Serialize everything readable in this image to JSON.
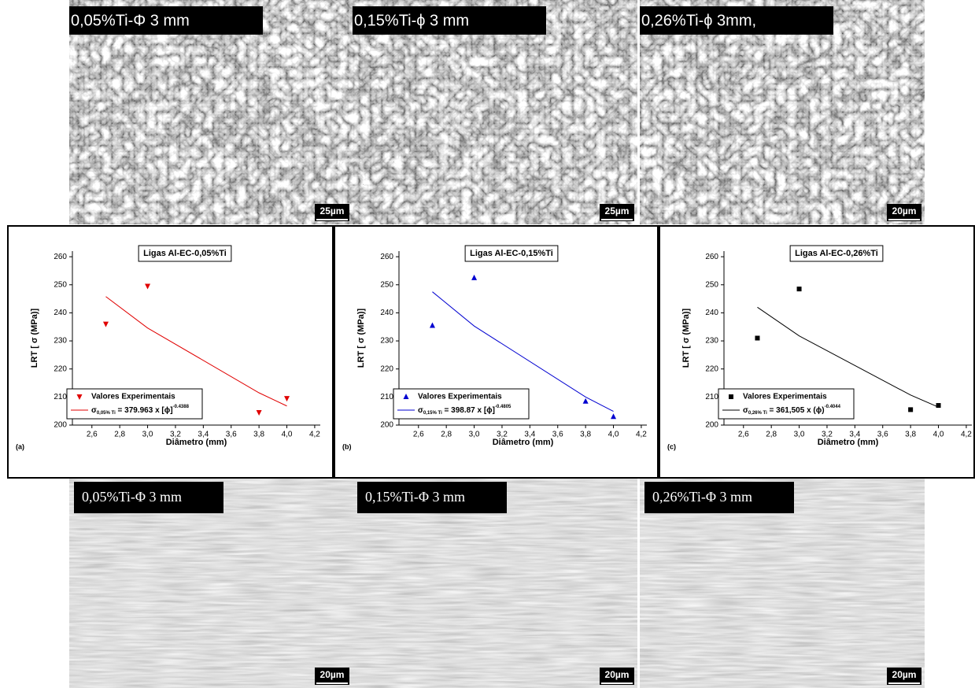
{
  "images_top": [
    {
      "label": "0,05%Ti-Φ 3 mm",
      "scale": "25µm"
    },
    {
      "label": "0,15%Ti-ϕ 3 mm",
      "scale": "25µm"
    },
    {
      "label": "0,26%Ti-ϕ 3mm,",
      "scale": "20µm"
    }
  ],
  "images_bottom": [
    {
      "label": "0,05%Ti-Φ 3 mm",
      "scale": "20µm"
    },
    {
      "label": "0,15%Ti-Φ 3 mm",
      "scale": "20µm"
    },
    {
      "label": "0,26%Ti-Φ 3 mm",
      "scale": "20µm"
    }
  ],
  "chart_data": [
    {
      "type": "scatter",
      "panel": "(a)",
      "title": "Ligas Al-EC-0,05%Ti",
      "x_label": "Diâmetro (mm)",
      "y_label": "LRT [ σ (MPa)]",
      "xlim": [
        2.46,
        4.24
      ],
      "ylim": [
        200,
        262
      ],
      "xticks": [
        {
          "value": 2.6,
          "label": "2,6"
        },
        {
          "value": 2.8,
          "label": "2,8"
        },
        {
          "value": 3.0,
          "label": "3,0"
        },
        {
          "value": 3.2,
          "label": "3,2"
        },
        {
          "value": 3.4,
          "label": "3,4"
        },
        {
          "value": 3.6,
          "label": "3,6"
        },
        {
          "value": 3.8,
          "label": "3,8"
        },
        {
          "value": 4.0,
          "label": "4,0"
        },
        {
          "value": 4.2,
          "label": "4,2"
        }
      ],
      "yticks": [
        200,
        210,
        220,
        230,
        240,
        250,
        260
      ],
      "series": [
        {
          "name": "Valores Experimentais",
          "color": "#e00000",
          "marker": "triangle-down",
          "x": [
            2.7,
            3.0,
            3.8,
            4.0
          ],
          "values": [
            236,
            249.5,
            204.5,
            209.5
          ]
        },
        {
          "type": "line",
          "name_parts": [
            "σ",
            "0,05% Ti",
            " = 379.963 x [ϕ]",
            "-0.4388"
          ],
          "color": "#e00000",
          "x": [
            2.7,
            3.0,
            3.8,
            4.0
          ],
          "values": [
            245.8,
            234.6,
            211.5,
            206.8
          ]
        }
      ]
    },
    {
      "type": "scatter",
      "panel": "(b)",
      "title": "Ligas Al-EC-0,15%Ti",
      "x_label": "Diâmetro (mm)",
      "y_label": "LRT [ σ (MPa)]",
      "xlim": [
        2.46,
        4.24
      ],
      "ylim": [
        200,
        262
      ],
      "xticks": [
        {
          "value": 2.6,
          "label": "2,6"
        },
        {
          "value": 2.8,
          "label": "2,8"
        },
        {
          "value": 3.0,
          "label": "3,0"
        },
        {
          "value": 3.2,
          "label": "3,2"
        },
        {
          "value": 3.4,
          "label": "3,4"
        },
        {
          "value": 3.6,
          "label": "3,6"
        },
        {
          "value": 3.8,
          "label": "3,8"
        },
        {
          "value": 4.0,
          "label": "4,0"
        },
        {
          "value": 4.2,
          "label": "4,2"
        }
      ],
      "yticks": [
        200,
        210,
        220,
        230,
        240,
        250,
        260
      ],
      "series": [
        {
          "name": "Valores Experimentais",
          "color": "#0000d0",
          "marker": "triangle-up",
          "x": [
            2.7,
            3.0,
            3.8,
            4.0
          ],
          "values": [
            235.5,
            252.5,
            208.5,
            203
          ]
        },
        {
          "type": "line",
          "name_parts": [
            "σ",
            "0,15% Ti",
            " = 398.87 x [ϕ]",
            "-0.4805"
          ],
          "color": "#0000d0",
          "x": [
            2.7,
            3.0,
            3.8,
            4.0
          ],
          "values": [
            247.5,
            235.3,
            210.0,
            204.9
          ]
        }
      ]
    },
    {
      "type": "scatter",
      "panel": "(c)",
      "title": "Ligas Al-EC-0,26%Ti",
      "x_label": "Diâmetro (mm)",
      "y_label": "LRT [ σ (MPa)]",
      "xlim": [
        2.46,
        4.24
      ],
      "ylim": [
        200,
        262
      ],
      "xticks": [
        {
          "value": 2.6,
          "label": "2,6"
        },
        {
          "value": 2.8,
          "label": "2,8"
        },
        {
          "value": 3.0,
          "label": "3,0"
        },
        {
          "value": 3.2,
          "label": "3,2"
        },
        {
          "value": 3.4,
          "label": "3,4"
        },
        {
          "value": 3.6,
          "label": "3,6"
        },
        {
          "value": 3.8,
          "label": "3,8"
        },
        {
          "value": 4.0,
          "label": "4,0"
        },
        {
          "value": 4.2,
          "label": "4,2"
        }
      ],
      "yticks": [
        200,
        210,
        220,
        230,
        240,
        250,
        260
      ],
      "series": [
        {
          "name": "Valores Experimentais",
          "color": "#000000",
          "marker": "square",
          "x": [
            2.7,
            3.0,
            3.8,
            4.0
          ],
          "values": [
            231,
            248.5,
            205.5,
            207
          ]
        },
        {
          "type": "line",
          "name_parts": [
            "σ",
            "0,26% Ti",
            " = 361,505 x (ϕ)",
            "-0.4044"
          ],
          "color": "#000000",
          "x": [
            2.7,
            3.0,
            3.8,
            4.0
          ],
          "values": [
            242.0,
            231.8,
            210.7,
            206.4
          ]
        }
      ]
    }
  ]
}
